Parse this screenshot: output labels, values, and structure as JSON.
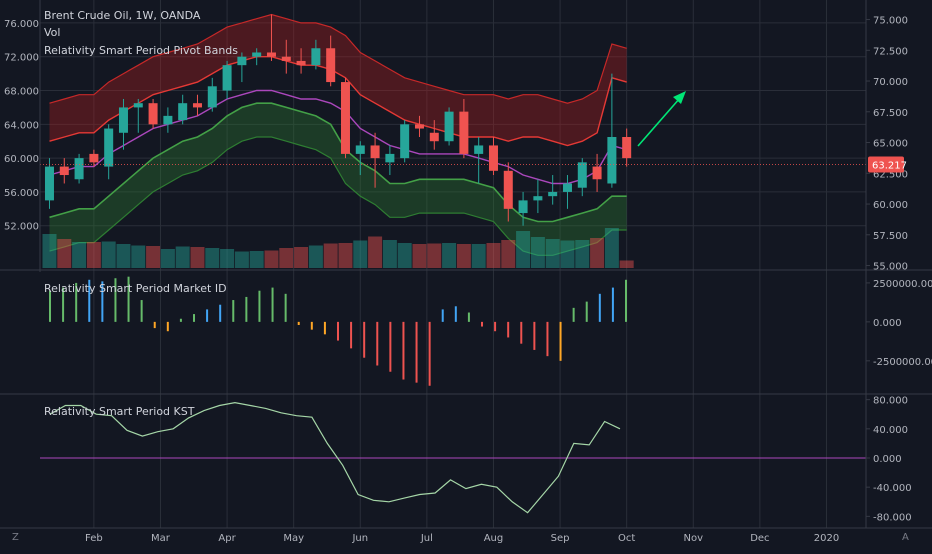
{
  "header": {
    "symbol_line": "Brent Crude Oil, 1W, OANDA",
    "indicator_vol": "Vol",
    "indicator_bands": "Relativity Smart Period Pivot Bands"
  },
  "panes": {
    "market_id_label": "Relativity Smart Period Market ID",
    "kst_label": "Relativity Smart Period KST"
  },
  "corner": {
    "left": "Z",
    "right": "A"
  },
  "colors": {
    "background": "#131722",
    "up": "#26a69a",
    "down": "#ef5350",
    "kst_line": "#a5d6a7",
    "magenta_line": "#ab47bc",
    "green_band": "#2e7d32",
    "red_band": "#b71c1c",
    "arrow": "#00e676",
    "price_tag": "#ef5350",
    "grid": "#2a2e39",
    "axis_text": "#b2b5be"
  },
  "price_tag": "63.217",
  "chart_data": [
    {
      "type": "candlestick",
      "title": "Brent Crude Oil, 1W, OANDA",
      "left_axis": {
        "ticks": [
          "76.000",
          "72.000",
          "68.000",
          "64.000",
          "60.000",
          "56.000",
          "52.000"
        ],
        "range": [
          47.0,
          78.0
        ]
      },
      "right_axis": {
        "ticks": [
          "75.000",
          "72.500",
          "70.000",
          "67.500",
          "65.000",
          "62.500",
          "60.000",
          "57.500",
          "55.000"
        ],
        "range": [
          54.8,
          76.1
        ]
      },
      "x_ticks": [
        "Feb",
        "Mar",
        "Apr",
        "May",
        "Jun",
        "Jul",
        "Aug",
        "Sep",
        "Oct",
        "Nov",
        "Dec",
        "2020"
      ],
      "x_tick_weeks": [
        4,
        8.5,
        13,
        17.5,
        22,
        26.5,
        31,
        35.5,
        40,
        44.5,
        49,
        53.5
      ],
      "candles": [
        {
          "o": 55.0,
          "h": 60.0,
          "l": 54.0,
          "c": 59.0
        },
        {
          "o": 59.0,
          "h": 60.0,
          "l": 57.0,
          "c": 58.0
        },
        {
          "o": 57.5,
          "h": 60.5,
          "l": 57.0,
          "c": 60.0
        },
        {
          "o": 60.5,
          "h": 61.0,
          "l": 59.0,
          "c": 59.5
        },
        {
          "o": 59.0,
          "h": 64.0,
          "l": 57.5,
          "c": 63.5
        },
        {
          "o": 63.0,
          "h": 67.0,
          "l": 61.0,
          "c": 66.0
        },
        {
          "o": 66.0,
          "h": 67.0,
          "l": 63.0,
          "c": 66.5
        },
        {
          "o": 66.5,
          "h": 67.0,
          "l": 63.5,
          "c": 64.0
        },
        {
          "o": 64.0,
          "h": 66.0,
          "l": 63.0,
          "c": 65.0
        },
        {
          "o": 64.5,
          "h": 67.5,
          "l": 64.0,
          "c": 66.5
        },
        {
          "o": 66.5,
          "h": 67.5,
          "l": 65.0,
          "c": 66.0
        },
        {
          "o": 66.0,
          "h": 69.5,
          "l": 65.5,
          "c": 68.5
        },
        {
          "o": 68.0,
          "h": 71.5,
          "l": 67.0,
          "c": 71.0
        },
        {
          "o": 71.0,
          "h": 72.5,
          "l": 69.0,
          "c": 72.0
        },
        {
          "o": 72.0,
          "h": 73.0,
          "l": 71.0,
          "c": 72.5
        },
        {
          "o": 72.5,
          "h": 77.0,
          "l": 71.5,
          "c": 72.0
        },
        {
          "o": 72.0,
          "h": 74.0,
          "l": 70.0,
          "c": 71.5
        },
        {
          "o": 71.5,
          "h": 73.0,
          "l": 70.0,
          "c": 71.0
        },
        {
          "o": 71.0,
          "h": 74.0,
          "l": 70.5,
          "c": 73.0
        },
        {
          "o": 73.0,
          "h": 74.5,
          "l": 68.5,
          "c": 69.0
        },
        {
          "o": 69.0,
          "h": 69.5,
          "l": 60.0,
          "c": 60.5
        },
        {
          "o": 60.5,
          "h": 62.0,
          "l": 58.0,
          "c": 61.5
        },
        {
          "o": 61.5,
          "h": 63.0,
          "l": 56.5,
          "c": 60.0
        },
        {
          "o": 59.5,
          "h": 61.5,
          "l": 58.0,
          "c": 60.5
        },
        {
          "o": 60.0,
          "h": 64.5,
          "l": 59.5,
          "c": 64.0
        },
        {
          "o": 64.0,
          "h": 65.0,
          "l": 62.5,
          "c": 63.5
        },
        {
          "o": 63.0,
          "h": 64.5,
          "l": 61.0,
          "c": 62.0
        },
        {
          "o": 62.0,
          "h": 66.0,
          "l": 61.5,
          "c": 65.5
        },
        {
          "o": 65.5,
          "h": 67.0,
          "l": 60.0,
          "c": 60.5
        },
        {
          "o": 60.5,
          "h": 62.5,
          "l": 57.0,
          "c": 61.5
        },
        {
          "o": 61.5,
          "h": 62.5,
          "l": 58.0,
          "c": 58.5
        },
        {
          "o": 58.5,
          "h": 59.5,
          "l": 52.5,
          "c": 54.0
        },
        {
          "o": 53.5,
          "h": 56.0,
          "l": 52.0,
          "c": 55.0
        },
        {
          "o": 55.0,
          "h": 57.5,
          "l": 53.5,
          "c": 55.5
        },
        {
          "o": 55.5,
          "h": 58.0,
          "l": 54.5,
          "c": 56.0
        },
        {
          "o": 56.0,
          "h": 58.0,
          "l": 54.0,
          "c": 57.0
        },
        {
          "o": 56.5,
          "h": 60.0,
          "l": 55.5,
          "c": 59.5
        },
        {
          "o": 59.0,
          "h": 60.5,
          "l": 56.0,
          "c": 57.5
        },
        {
          "o": 57.0,
          "h": 70.0,
          "l": 56.5,
          "c": 62.5
        },
        {
          "o": 62.5,
          "h": 63.5,
          "l": 59.0,
          "c": 60.0
        }
      ],
      "volume": [
        0.68,
        0.58,
        0.52,
        0.52,
        0.53,
        0.48,
        0.45,
        0.44,
        0.38,
        0.43,
        0.42,
        0.4,
        0.38,
        0.33,
        0.34,
        0.35,
        0.4,
        0.42,
        0.45,
        0.49,
        0.5,
        0.55,
        0.63,
        0.56,
        0.5,
        0.48,
        0.49,
        0.5,
        0.48,
        0.48,
        0.5,
        0.56,
        0.74,
        0.62,
        0.58,
        0.55,
        0.56,
        0.6,
        0.8,
        0.15
      ],
      "pivot_upper_top": [
        66.5,
        67.0,
        67.5,
        67.5,
        69.0,
        70.0,
        71.0,
        72.0,
        72.5,
        73.0,
        73.5,
        74.5,
        75.5,
        76.0,
        76.5,
        77.0,
        76.5,
        76.0,
        76.0,
        75.5,
        74.5,
        72.5,
        71.5,
        70.5,
        69.5,
        69.0,
        68.5,
        68.0,
        67.5,
        67.5,
        67.5,
        67.0,
        67.5,
        67.5,
        67.0,
        66.5,
        67.0,
        68.0,
        73.5,
        73.0
      ],
      "pivot_upper_bottom": [
        62.0,
        62.5,
        63.0,
        63.0,
        64.5,
        65.5,
        66.5,
        67.5,
        68.0,
        68.5,
        69.0,
        70.0,
        71.0,
        71.5,
        72.0,
        72.0,
        71.5,
        71.0,
        71.0,
        70.5,
        69.5,
        67.5,
        66.5,
        65.5,
        64.5,
        64.0,
        63.5,
        63.0,
        62.5,
        62.5,
        62.5,
        62.0,
        62.5,
        62.5,
        62.0,
        61.5,
        62.0,
        63.0,
        69.5,
        69.0
      ],
      "pivot_mid": [
        58.0,
        58.5,
        59.0,
        59.0,
        60.5,
        61.5,
        62.5,
        63.5,
        64.0,
        64.5,
        65.0,
        66.0,
        67.0,
        67.5,
        68.0,
        68.0,
        67.5,
        67.0,
        67.0,
        66.5,
        65.5,
        63.5,
        62.5,
        61.5,
        61.0,
        60.5,
        60.5,
        60.5,
        60.5,
        60.0,
        59.5,
        59.0,
        58.0,
        57.5,
        57.0,
        57.0,
        57.5,
        58.5,
        61.5,
        61.0
      ],
      "pivot_lower_top": [
        53.0,
        53.5,
        54.0,
        54.0,
        55.5,
        57.0,
        58.5,
        60.0,
        61.0,
        62.0,
        62.5,
        63.5,
        65.0,
        66.0,
        66.5,
        66.5,
        66.0,
        65.5,
        65.0,
        64.0,
        61.0,
        59.5,
        58.5,
        57.0,
        57.0,
        57.5,
        57.5,
        57.5,
        57.5,
        57.0,
        56.5,
        54.5,
        53.0,
        52.5,
        52.5,
        53.0,
        53.5,
        54.0,
        55.5,
        55.5
      ],
      "pivot_lower_bottom": [
        49.0,
        49.5,
        50.0,
        50.0,
        51.5,
        53.0,
        54.5,
        56.0,
        57.0,
        58.0,
        58.5,
        59.5,
        61.0,
        62.0,
        62.5,
        62.5,
        62.0,
        61.5,
        61.0,
        60.0,
        57.0,
        55.5,
        54.5,
        53.0,
        53.0,
        53.5,
        53.5,
        53.5,
        53.5,
        53.0,
        52.5,
        50.5,
        49.0,
        48.5,
        48.5,
        49.0,
        49.5,
        50.0,
        51.5,
        51.5
      ]
    },
    {
      "type": "bar",
      "title": "Relativity Smart Period Market ID",
      "y_ticks": [
        "2500000.000",
        "0.000",
        "-2500000.000"
      ],
      "ylim": [
        -4500000,
        3200000
      ],
      "values": [
        2000000,
        2200000,
        2500000,
        2700000,
        2600000,
        2800000,
        2900000,
        1400000,
        -400000,
        -600000,
        200000,
        500000,
        800000,
        1100000,
        1400000,
        1600000,
        2000000,
        2200000,
        1800000,
        -200000,
        -500000,
        -800000,
        -1200000,
        -1700000,
        -2300000,
        -2800000,
        -3200000,
        -3700000,
        -3900000,
        -4100000,
        800000,
        1000000,
        600000,
        -300000,
        -600000,
        -1000000,
        -1400000,
        -1800000,
        -2200000,
        -2500000,
        900000,
        1300000,
        1800000,
        2200000,
        2700000
      ],
      "colors": [
        "#66bb6a",
        "#66bb6a",
        "#66bb6a",
        "#42a5f5",
        "#42a5f5",
        "#66bb6a",
        "#66bb6a",
        "#66bb6a",
        "#ffa726",
        "#ffa726",
        "#66bb6a",
        "#66bb6a",
        "#42a5f5",
        "#42a5f5",
        "#66bb6a",
        "#66bb6a",
        "#66bb6a",
        "#66bb6a",
        "#66bb6a",
        "#ffa726",
        "#ffa726",
        "#ffa726",
        "#ef5350",
        "#ef5350",
        "#ef5350",
        "#ef5350",
        "#ef5350",
        "#ef5350",
        "#ef5350",
        "#ef5350",
        "#42a5f5",
        "#42a5f5",
        "#66bb6a",
        "#ef5350",
        "#ef5350",
        "#ef5350",
        "#ef5350",
        "#ef5350",
        "#ef5350",
        "#ffa726",
        "#66bb6a",
        "#66bb6a",
        "#42a5f5",
        "#42a5f5",
        "#66bb6a"
      ]
    },
    {
      "type": "line",
      "title": "Relativity Smart Period KST",
      "y_ticks": [
        "80.000",
        "40.000",
        "0.000",
        "-40.000",
        "-80.000"
      ],
      "ylim": [
        -85,
        85
      ],
      "zero_line": 0,
      "values": [
        60,
        72,
        72,
        60,
        58,
        38,
        30,
        36,
        40,
        55,
        65,
        72,
        76,
        72,
        68,
        62,
        58,
        56,
        20,
        -10,
        -50,
        -58,
        -60,
        -55,
        -50,
        -48,
        -30,
        -42,
        -36,
        -40,
        -60,
        -75,
        -50,
        -25,
        20,
        18,
        50,
        40
      ]
    }
  ]
}
